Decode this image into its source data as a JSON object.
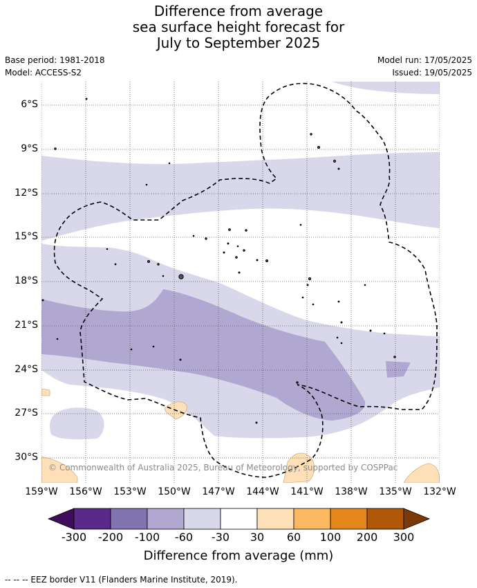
{
  "title_lines": [
    "Difference from average",
    "sea surface height forecast for",
    "July to September 2025"
  ],
  "meta": {
    "base_period": "Base period: 1981-2018",
    "model": "Model: ACCESS-S2",
    "model_run": "Model run: 17/05/2025",
    "issued": "Issued: 19/05/2025"
  },
  "map": {
    "lat_labels": [
      "6°S",
      "9°S",
      "12°S",
      "15°S",
      "18°S",
      "21°S",
      "24°S",
      "27°S",
      "30°S"
    ],
    "lon_labels": [
      "159°W",
      "156°W",
      "153°W",
      "150°W",
      "147°W",
      "144°W",
      "141°W",
      "138°W",
      "135°W",
      "132°W"
    ],
    "copyright": "© Commonwealth of Australia 2025, Bureau of Meteorology, supported by COSPPac"
  },
  "colorbar": {
    "ticks": [
      "-300",
      "-200",
      "-100",
      "-60",
      "-30",
      "30",
      "60",
      "100",
      "200",
      "300"
    ],
    "colors": [
      "#3f0d5a",
      "#5a2a8a",
      "#8274b0",
      "#b0a8d0",
      "#d8d8ea",
      "#ffffff",
      "#fde0b8",
      "#fbb860",
      "#e4861a",
      "#b05808",
      "#7a3a08"
    ],
    "title": "Difference from average (mm)"
  },
  "footer": "--  --  -- EEZ border V11 (Flanders Marine Institute, 2019)."
}
